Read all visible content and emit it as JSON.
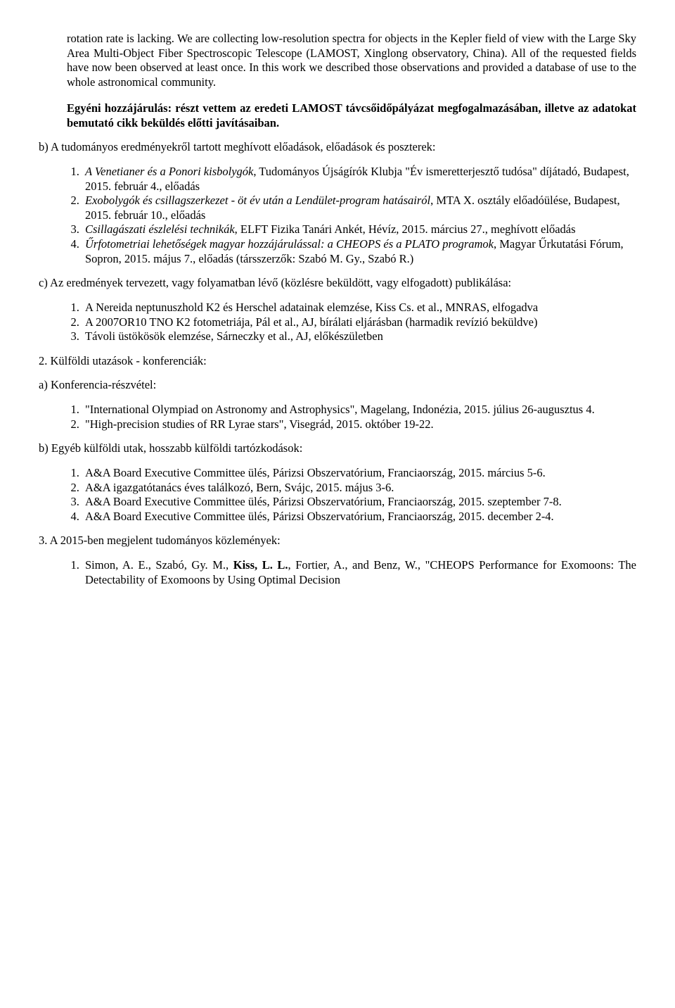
{
  "intro_paragraph": "rotation rate is lacking. We are collecting low-resolution spectra for objects in the Kepler field of view with the Large Sky Area Multi-Object Fiber Spectroscopic Telescope (LAMOST, Xinglong observatory, China). All of the requested fields have now been observed at least once. In this work we described those observations and provided a database of use to the whole astronomical community.",
  "contribution_label": "Egyéni hozzájárulás:",
  "contribution_text": "részt vettem az eredeti LAMOST távcsőidőpályázat megfogalmazásában, illetve az adatokat bemutató cikk beküldés előtti javításaiban.",
  "section_b_heading": "b) A tudományos eredményekről tartott meghívott előadások, előadások és poszterek:",
  "talks": [
    {
      "title": "A Venetianer és a Ponori kisbolygók",
      "rest": ", Tudományos Újságírók Klubja \"Év ismeretterjesztő tudósa\" díjátadó, Budapest, 2015. február 4., előadás"
    },
    {
      "title": "Exobolygók és csillagszerkezet - öt év után a Lendület-program hatásairól",
      "rest": ", MTA X. osztály előadóülése, Budapest, 2015. február 10., előadás"
    },
    {
      "title": "Csillagászati észlelési technikák",
      "rest": ", ELFT Fizika Tanári Ankét, Hévíz, 2015. március 27., meghívott előadás"
    },
    {
      "title": "Űrfotometriai lehetőségek magyar hozzájárulással: a CHEOPS és a PLATO programok",
      "rest": ", Magyar Űrkutatási Fórum, Sopron, 2015. május 7., előadás (társszerzők: Szabó M. Gy., Szabó R.)"
    }
  ],
  "section_c_heading": "c) Az eredmények tervezett, vagy folyamatban lévő (közlésre beküldött, vagy elfogadott) publikálása:",
  "pubs": [
    "A Nereida neptunuszhold K2 és Herschel adatainak elemzése, Kiss Cs. et al., MNRAS, elfogadva",
    "A 2007OR10 TNO K2 fotometriája, Pál et al., AJ, bírálati eljárásban (harmadik revízió beküldve)",
    "Távoli üstökösök elemzése, Sárneczky et al., AJ, előkészületben"
  ],
  "section_2_heading": "2. Külföldi utazások - konferenciák:",
  "section_2a_heading": "a) Konferencia-részvétel:",
  "conferences": [
    "\"International Olympiad on Astronomy and Astrophysics\", Magelang, Indonézia, 2015. július 26-augusztus 4.",
    "\"High-precision studies of RR Lyrae stars\", Visegrád, 2015. október 19-22."
  ],
  "section_2b_heading": "b) Egyéb külföldi utak, hosszabb külföldi tartózkodások:",
  "trips": [
    "A&A Board Executive Committee ülés, Párizsi Obszervatórium, Franciaország, 2015. március 5-6.",
    "A&A igazgatótanács éves találkozó, Bern, Svájc, 2015. május 3-6.",
    "A&A Board Executive Committee ülés, Párizsi Obszervatórium, Franciaország, 2015. szeptember 7-8.",
    "A&A Board Executive Committee ülés, Párizsi Obszervatórium, Franciaország, 2015. december 2-4."
  ],
  "section_3_heading": "3. A 2015-ben megjelent tudományos közlemények:",
  "refs": [
    {
      "authors_pre": "Simon, A. E., Szabó, Gy. M., ",
      "authors_bold": "Kiss, L. L.",
      "authors_post": ", Fortier, A., and Benz, W., ",
      "title": "\"CHEOPS Performance for Exomoons: The Detectability of Exomoons by Using  Optimal Decision"
    }
  ]
}
